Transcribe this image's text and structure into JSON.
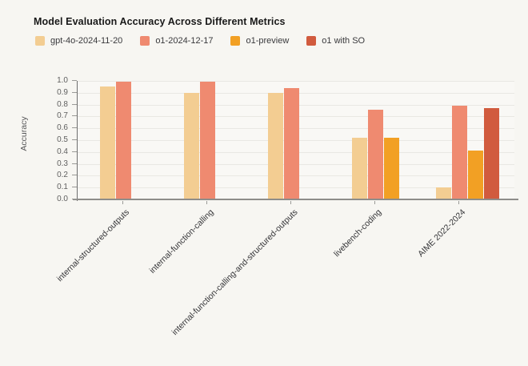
{
  "page": {
    "background_color": "#f7f6f2",
    "plot_background_color": "#f9f8f5",
    "gridline_color": "#e9e8e3",
    "axis_line_color": "#8e8d8a"
  },
  "header": {
    "title": "Model Evaluation Accuracy Across Different Metrics"
  },
  "chart_data": {
    "type": "bar",
    "title": "Model Evaluation Accuracy Across Different Metrics",
    "xlabel": "",
    "ylabel": "Accuracy",
    "ylim": [
      0.0,
      1.0
    ],
    "yticks": [
      0.0,
      0.1,
      0.2,
      0.3,
      0.4,
      0.5,
      0.6,
      0.7,
      0.8,
      0.9,
      1.0
    ],
    "grid": true,
    "legend_position": "top",
    "categories": [
      "internal-structured-outputs",
      "internal-function-calling",
      "internal-function-calling-and-structured-outputs",
      "livebench-coding",
      "AIME 2022-2024"
    ],
    "series": [
      {
        "name": "gpt-4o-2024-11-20",
        "color": "#f3cd92",
        "values": [
          0.95,
          0.9,
          0.9,
          0.52,
          0.1
        ]
      },
      {
        "name": "o1-2024-12-17",
        "color": "#ef8a70",
        "values": [
          0.99,
          0.99,
          0.94,
          0.76,
          0.79
        ]
      },
      {
        "name": "o1-preview",
        "color": "#f2a024",
        "values": [
          null,
          null,
          null,
          0.52,
          0.41
        ]
      },
      {
        "name": "o1 with SO",
        "color": "#d15b3e",
        "values": [
          null,
          null,
          null,
          null,
          0.77
        ]
      }
    ]
  }
}
